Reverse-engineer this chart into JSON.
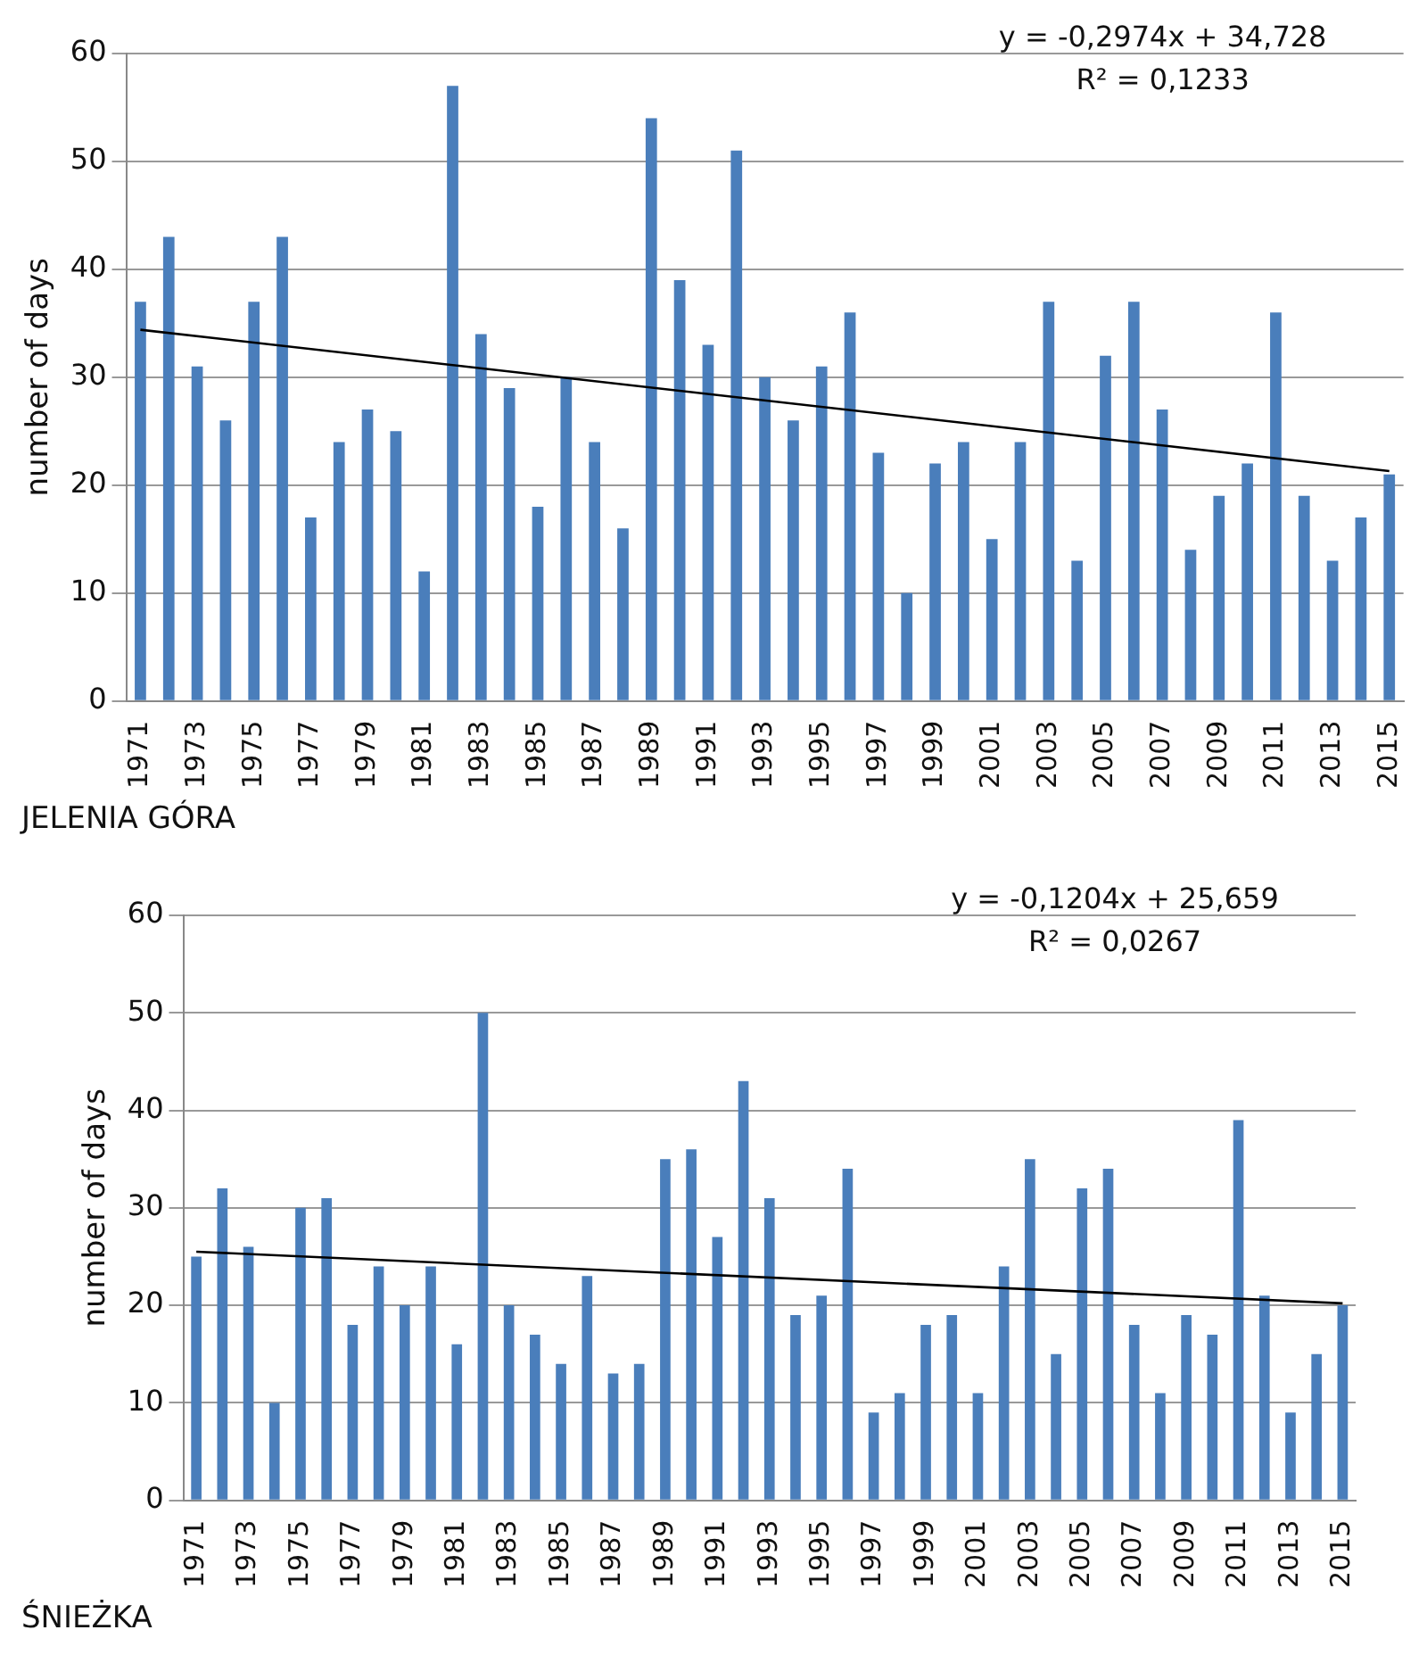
{
  "chart_data": [
    {
      "type": "bar",
      "ylabel": "number of days",
      "categories": [
        "1971",
        null,
        "1973",
        null,
        "1975",
        null,
        "1977",
        null,
        "1979",
        null,
        "1981",
        null,
        "1983",
        null,
        "1985",
        null,
        "1987",
        null,
        "1989",
        null,
        "1991",
        null,
        "1993",
        null,
        "1995",
        null,
        "1997",
        null,
        "1999",
        null,
        "2001",
        null,
        "2003",
        null,
        "2005",
        null,
        "2007",
        null,
        "2009",
        null,
        "2011",
        null,
        "2013",
        null,
        "2015"
      ],
      "series": [
        {
          "color": "#4a7ebb",
          "values": [
            37,
            43,
            31,
            26,
            37,
            43,
            17,
            24,
            27,
            25,
            12,
            57,
            34,
            29,
            18,
            30,
            24,
            16,
            54,
            39,
            33,
            51,
            30,
            26,
            31,
            36,
            23,
            10,
            22,
            24,
            15,
            24,
            37,
            13,
            32,
            37,
            27,
            14,
            19,
            22,
            36,
            19,
            13,
            17,
            21
          ]
        },
        {
          "type": "line",
          "color": "#000000",
          "values": [
            34.4,
            null,
            null,
            null,
            null,
            null,
            null,
            null,
            null,
            null,
            null,
            null,
            null,
            null,
            null,
            null,
            null,
            null,
            null,
            null,
            null,
            null,
            null,
            null,
            null,
            null,
            null,
            null,
            null,
            null,
            null,
            null,
            null,
            null,
            null,
            null,
            null,
            null,
            null,
            null,
            null,
            null,
            null,
            null,
            21.3
          ]
        }
      ],
      "ylim": [
        0,
        60
      ],
      "yticks": [
        0,
        10,
        20,
        30,
        40,
        50,
        60
      ],
      "grid": "y",
      "legend": false,
      "marker": "none",
      "annotations": [
        "y = -0,2974x + 34,728",
        "R² = 0,1233",
        "JELENIA GÓRA"
      ]
    },
    {
      "type": "bar",
      "ylabel": "number of days",
      "categories": [
        "1971",
        null,
        "1973",
        null,
        "1975",
        null,
        "1977",
        null,
        "1979",
        null,
        "1981",
        null,
        "1983",
        null,
        "1985",
        null,
        "1987",
        null,
        "1989",
        null,
        "1991",
        null,
        "1993",
        null,
        "1995",
        null,
        "1997",
        null,
        "1999",
        null,
        "2001",
        null,
        "2003",
        null,
        "2005",
        null,
        "2007",
        null,
        "2009",
        null,
        "2011",
        null,
        "2013",
        null,
        "2015"
      ],
      "series": [
        {
          "color": "#4a7ebb",
          "values": [
            25,
            32,
            26,
            10,
            30,
            31,
            18,
            24,
            20,
            24,
            16,
            50,
            20,
            17,
            14,
            23,
            13,
            14,
            35,
            36,
            27,
            43,
            31,
            19,
            21,
            34,
            9,
            11,
            18,
            19,
            11,
            24,
            35,
            15,
            32,
            34,
            18,
            11,
            19,
            17,
            39,
            21,
            9,
            15,
            20
          ]
        },
        {
          "type": "line",
          "color": "#000000",
          "values": [
            25.5,
            null,
            null,
            null,
            null,
            null,
            null,
            null,
            null,
            null,
            null,
            null,
            null,
            null,
            null,
            null,
            null,
            null,
            null,
            null,
            null,
            null,
            null,
            null,
            null,
            null,
            null,
            null,
            null,
            null,
            null,
            null,
            null,
            null,
            null,
            null,
            null,
            null,
            null,
            null,
            null,
            null,
            null,
            null,
            20.2
          ]
        }
      ],
      "ylim": [
        0,
        60
      ],
      "yticks": [
        0,
        10,
        20,
        30,
        40,
        50,
        60
      ],
      "grid": "y",
      "legend": false,
      "marker": "none",
      "annotations": [
        "y = -0,1204x + 25,659",
        "R² = 0,0267",
        "ŚNIEŻKA"
      ]
    }
  ]
}
